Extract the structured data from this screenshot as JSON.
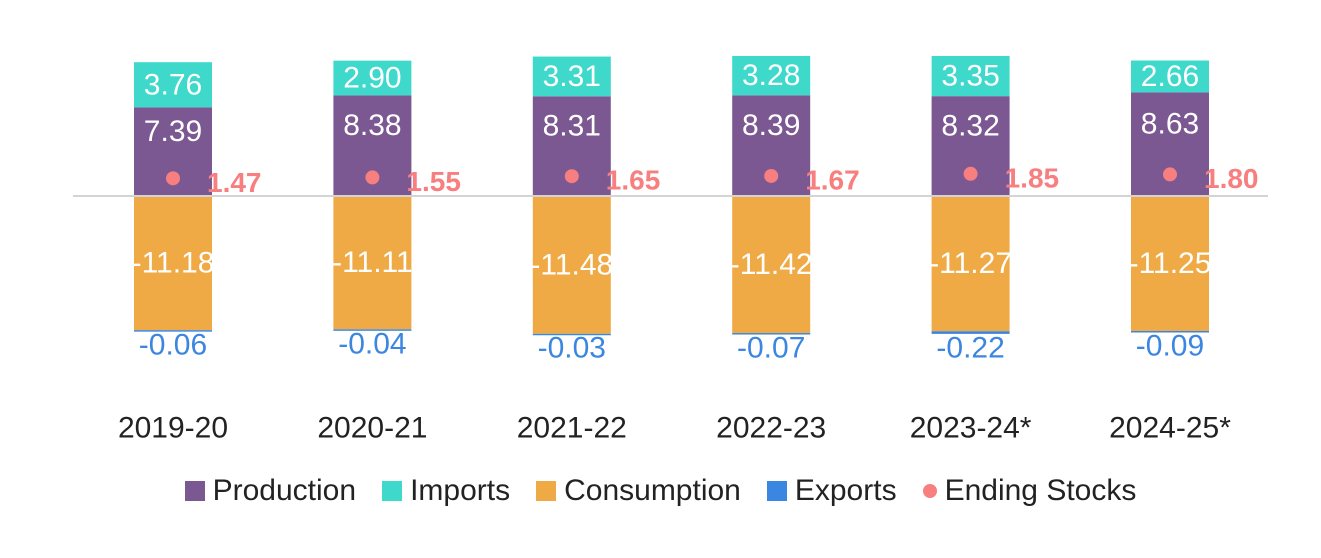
{
  "chart_data": {
    "type": "bar",
    "stacked": true,
    "categories": [
      "2019-20",
      "2020-21",
      "2021-22",
      "2022-23",
      "2023-24*",
      "2024-25*"
    ],
    "series": [
      {
        "name": "Production",
        "color": "#7b5891",
        "values": [
          7.39,
          8.38,
          8.31,
          8.39,
          8.32,
          8.63
        ]
      },
      {
        "name": "Imports",
        "color": "#3fd9cc",
        "values": [
          3.76,
          2.9,
          3.31,
          3.28,
          3.35,
          2.66
        ]
      },
      {
        "name": "Consumption",
        "color": "#efaa45",
        "values": [
          -11.18,
          -11.11,
          -11.48,
          -11.42,
          -11.27,
          -11.25
        ]
      },
      {
        "name": "Exports",
        "color": "#3b86e0",
        "values": [
          -0.06,
          -0.04,
          -0.03,
          -0.07,
          -0.22,
          -0.09
        ]
      },
      {
        "name": "Ending Stocks",
        "color": "#f77f7f",
        "type": "scatter",
        "values": [
          1.47,
          1.55,
          1.65,
          1.67,
          1.85,
          1.8
        ]
      }
    ],
    "value_labels": {
      "Production": [
        "7.39",
        "8.38",
        "8.31",
        "8.39",
        "8.32",
        "8.63"
      ],
      "Imports": [
        "3.76",
        "2.90",
        "3.31",
        "3.28",
        "3.35",
        "2.66"
      ],
      "Consumption": [
        "-11.18",
        "-11.11",
        "-11.48",
        "-11.42",
        "-11.27",
        "-11.25"
      ],
      "Exports": [
        "-0.06",
        "-0.04",
        "-0.03",
        "-0.07",
        "-0.22",
        "-0.09"
      ],
      "Ending Stocks": [
        "1.47",
        "1.55",
        "1.65",
        "1.67",
        "1.85",
        "1.80"
      ]
    },
    "title": "",
    "xlabel": "",
    "ylabel": "",
    "ylim": [
      -12.5,
      12.5
    ],
    "grid": false,
    "legend_position": "bottom"
  },
  "legend": {
    "production": "Production",
    "imports": "Imports",
    "consumption": "Consumption",
    "exports": "Exports",
    "ending_stocks": "Ending Stocks"
  }
}
